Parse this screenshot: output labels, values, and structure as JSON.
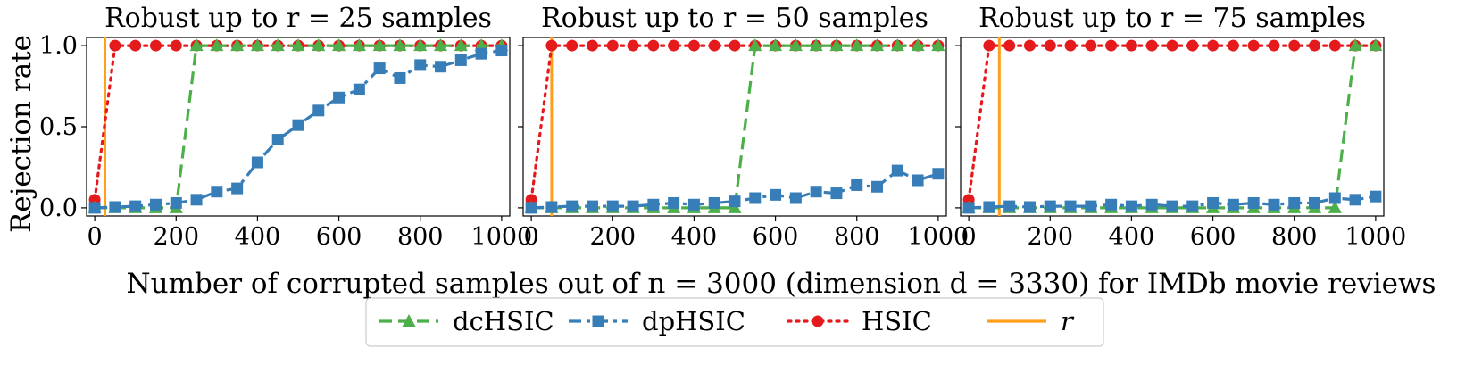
{
  "chart_data": {
    "type": "line",
    "xlabel": "Number of corrupted samples out of n = 3000 (dimension d = 3330) for IMDb movie reviews",
    "ylabel": "Rejection rate",
    "xlim": [
      -20,
      1020
    ],
    "ylim": [
      -0.05,
      1.05
    ],
    "xticks": [
      0,
      200,
      400,
      600,
      800,
      1000
    ],
    "yticks": [
      0.0,
      0.5,
      1.0
    ],
    "x": [
      0,
      50,
      100,
      150,
      200,
      250,
      300,
      350,
      400,
      450,
      500,
      550,
      600,
      650,
      700,
      750,
      800,
      850,
      900,
      950,
      1000
    ],
    "legend": {
      "placement": "bottom-center",
      "entries": [
        {
          "name": "dcHSIC",
          "color": "#4daf4a",
          "style": "dashed",
          "marker": "triangle"
        },
        {
          "name": "dpHSIC",
          "color": "#377eb8",
          "style": "dashdot",
          "marker": "square"
        },
        {
          "name": "HSIC",
          "color": "#e41a1c",
          "style": "dotted",
          "marker": "circle"
        },
        {
          "name": "r",
          "color": "#ff9f1c",
          "style": "solid",
          "marker": "none"
        }
      ]
    },
    "panels": [
      {
        "title": "Robust up to r = 25 samples",
        "r": 25,
        "series": [
          {
            "name": "dcHSIC",
            "values": [
              0,
              0,
              0,
              0,
              0,
              1,
              1,
              1,
              1,
              1,
              1,
              1,
              1,
              1,
              1,
              1,
              1,
              1,
              1,
              1,
              1
            ]
          },
          {
            "name": "dpHSIC",
            "values": [
              0,
              0.005,
              0.01,
              0.02,
              0.03,
              0.05,
              0.1,
              0.12,
              0.28,
              0.42,
              0.51,
              0.6,
              0.68,
              0.73,
              0.86,
              0.8,
              0.88,
              0.87,
              0.91,
              0.95,
              0.97
            ]
          },
          {
            "name": "HSIC",
            "values": [
              0.05,
              1,
              1,
              1,
              1,
              1,
              1,
              1,
              1,
              1,
              1,
              1,
              1,
              1,
              1,
              1,
              1,
              1,
              1,
              1,
              1
            ]
          }
        ]
      },
      {
        "title": "Robust up to r = 50 samples",
        "r": 50,
        "series": [
          {
            "name": "dcHSIC",
            "values": [
              0,
              0,
              0,
              0,
              0,
              0,
              0,
              0,
              0,
              0,
              0,
              1,
              1,
              1,
              1,
              1,
              1,
              1,
              1,
              1,
              1
            ]
          },
          {
            "name": "dpHSIC",
            "values": [
              0,
              0.005,
              0.01,
              0.01,
              0.01,
              0.01,
              0.02,
              0.03,
              0.02,
              0.03,
              0.04,
              0.06,
              0.08,
              0.06,
              0.1,
              0.09,
              0.14,
              0.13,
              0.23,
              0.17,
              0.21
            ]
          },
          {
            "name": "HSIC",
            "values": [
              0.05,
              1,
              1,
              1,
              1,
              1,
              1,
              1,
              1,
              1,
              1,
              1,
              1,
              1,
              1,
              1,
              1,
              1,
              1,
              1,
              1
            ]
          }
        ]
      },
      {
        "title": "Robust up to r = 75 samples",
        "r": 75,
        "series": [
          {
            "name": "dcHSIC",
            "values": [
              0,
              0,
              0,
              0,
              0,
              0,
              0,
              0,
              0,
              0,
              0,
              0,
              0,
              0,
              0,
              0,
              0,
              0,
              0,
              1,
              1
            ]
          },
          {
            "name": "dpHSIC",
            "values": [
              0,
              0.005,
              0.01,
              0.005,
              0.01,
              0.01,
              0.01,
              0.02,
              0.01,
              0.02,
              0.01,
              0.01,
              0.03,
              0.02,
              0.03,
              0.02,
              0.03,
              0.03,
              0.06,
              0.05,
              0.07
            ]
          },
          {
            "name": "HSIC",
            "values": [
              0.05,
              1,
              1,
              1,
              1,
              1,
              1,
              1,
              1,
              1,
              1,
              1,
              1,
              1,
              1,
              1,
              1,
              1,
              1,
              1,
              1
            ]
          }
        ]
      }
    ]
  }
}
